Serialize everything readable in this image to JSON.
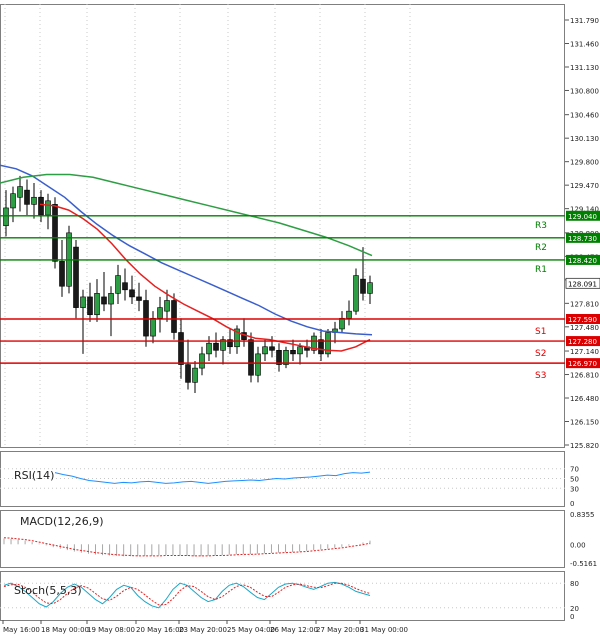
{
  "chart_data": {
    "type": "candlestick",
    "instrument_hint": "JPY cross, H4-style bars",
    "price_axis": {
      "ticks": [
        "131.790",
        "131.460",
        "131.130",
        "130.800",
        "130.460",
        "130.130",
        "129.800",
        "129.470",
        "129.140",
        "128.800",
        "128.470",
        "128.140",
        "127.810",
        "127.480",
        "127.140",
        "126.810",
        "126.480",
        "126.150",
        "125.820"
      ],
      "ylim": [
        125.82,
        131.79
      ]
    },
    "time_labels": [
      "May 16:00",
      "18 May 00:00",
      "19 May 08:00",
      "20 May 16:00",
      "23 May 20:00",
      "25 May 04:00",
      "26 May 12:00",
      "27 May 20:00",
      "31 May 00:00"
    ],
    "levels": [
      {
        "name": "R3",
        "value": 129.04,
        "label": "129.040",
        "color": "#008000"
      },
      {
        "name": "R2",
        "value": 128.73,
        "label": "128.730",
        "color": "#008000"
      },
      {
        "name": "R1",
        "value": 128.42,
        "label": "128.420",
        "color": "#008000"
      },
      {
        "name": "S1",
        "value": 127.59,
        "label": "127.590",
        "color": "#dd0000"
      },
      {
        "name": "S2",
        "value": 127.28,
        "label": "127.280",
        "color": "#dd0000"
      },
      {
        "name": "S3",
        "value": 126.97,
        "label": "126.970",
        "color": "#dd0000"
      }
    ],
    "last_price": {
      "value": 128.091,
      "label": "128.091"
    },
    "moving_averages": [
      {
        "name": "MA fast",
        "color": "#e62020",
        "values": [
          129.2,
          129.18,
          129.12,
          129.0,
          128.85,
          128.65,
          128.42,
          128.22,
          128.05,
          127.92,
          127.8,
          127.7,
          127.6,
          127.48,
          127.38,
          127.32,
          127.3,
          127.26,
          127.22,
          127.18,
          127.15,
          127.14,
          127.2,
          127.3
        ]
      },
      {
        "name": "MA mid",
        "color": "#3a5fcd",
        "values": [
          129.75,
          129.7,
          129.6,
          129.45,
          129.3,
          129.1,
          128.92,
          128.76,
          128.62,
          128.5,
          128.38,
          128.28,
          128.18,
          128.08,
          127.98,
          127.88,
          127.78,
          127.66,
          127.56,
          127.48,
          127.42,
          127.4,
          127.38,
          127.37
        ]
      },
      {
        "name": "MA slow",
        "color": "#2e9e44",
        "values": [
          129.5,
          129.58,
          129.62,
          129.62,
          129.58,
          129.5,
          129.42,
          129.34,
          129.26,
          129.18,
          129.1,
          129.02,
          128.94,
          128.84,
          128.74,
          128.62,
          128.48
        ]
      }
    ],
    "candles": [
      {
        "o": 128.9,
        "h": 129.4,
        "l": 128.75,
        "c": 129.15
      },
      {
        "o": 129.15,
        "h": 129.45,
        "l": 128.95,
        "c": 129.35
      },
      {
        "o": 129.3,
        "h": 129.6,
        "l": 129.1,
        "c": 129.45
      },
      {
        "o": 129.4,
        "h": 129.55,
        "l": 129.05,
        "c": 129.2
      },
      {
        "o": 129.2,
        "h": 129.5,
        "l": 129.0,
        "c": 129.3
      },
      {
        "o": 129.3,
        "h": 129.4,
        "l": 128.95,
        "c": 129.05
      },
      {
        "o": 129.05,
        "h": 129.35,
        "l": 128.85,
        "c": 129.25
      },
      {
        "o": 129.2,
        "h": 129.3,
        "l": 128.3,
        "c": 128.4
      },
      {
        "o": 128.4,
        "h": 128.7,
        "l": 127.9,
        "c": 128.05
      },
      {
        "o": 128.05,
        "h": 128.9,
        "l": 127.95,
        "c": 128.8
      },
      {
        "o": 128.6,
        "h": 128.7,
        "l": 127.6,
        "c": 127.75
      },
      {
        "o": 127.75,
        "h": 128.0,
        "l": 127.1,
        "c": 127.9
      },
      {
        "o": 127.9,
        "h": 128.1,
        "l": 127.55,
        "c": 127.65
      },
      {
        "o": 127.65,
        "h": 128.15,
        "l": 127.55,
        "c": 127.95
      },
      {
        "o": 127.9,
        "h": 128.25,
        "l": 127.7,
        "c": 127.8
      },
      {
        "o": 127.8,
        "h": 128.05,
        "l": 127.35,
        "c": 127.95
      },
      {
        "o": 127.95,
        "h": 128.35,
        "l": 127.8,
        "c": 128.2
      },
      {
        "o": 128.1,
        "h": 128.3,
        "l": 127.85,
        "c": 128.0
      },
      {
        "o": 128.0,
        "h": 128.2,
        "l": 127.8,
        "c": 127.9
      },
      {
        "o": 127.9,
        "h": 128.1,
        "l": 127.7,
        "c": 127.85
      },
      {
        "o": 127.85,
        "h": 128.0,
        "l": 127.2,
        "c": 127.35
      },
      {
        "o": 127.35,
        "h": 127.7,
        "l": 127.25,
        "c": 127.6
      },
      {
        "o": 127.6,
        "h": 127.9,
        "l": 127.4,
        "c": 127.75
      },
      {
        "o": 127.7,
        "h": 128.0,
        "l": 127.55,
        "c": 127.85
      },
      {
        "o": 127.85,
        "h": 127.95,
        "l": 127.3,
        "c": 127.4
      },
      {
        "o": 127.4,
        "h": 127.6,
        "l": 126.75,
        "c": 126.95
      },
      {
        "o": 126.95,
        "h": 127.3,
        "l": 126.6,
        "c": 126.7
      },
      {
        "o": 126.7,
        "h": 127.0,
        "l": 126.55,
        "c": 126.9
      },
      {
        "o": 126.9,
        "h": 127.2,
        "l": 126.8,
        "c": 127.1
      },
      {
        "o": 127.1,
        "h": 127.35,
        "l": 127.0,
        "c": 127.25
      },
      {
        "o": 127.25,
        "h": 127.4,
        "l": 127.05,
        "c": 127.15
      },
      {
        "o": 127.15,
        "h": 127.35,
        "l": 126.95,
        "c": 127.3
      },
      {
        "o": 127.3,
        "h": 127.45,
        "l": 127.1,
        "c": 127.2
      },
      {
        "o": 127.2,
        "h": 127.5,
        "l": 127.1,
        "c": 127.45
      },
      {
        "o": 127.4,
        "h": 127.6,
        "l": 127.2,
        "c": 127.3
      },
      {
        "o": 127.3,
        "h": 127.4,
        "l": 126.7,
        "c": 126.8
      },
      {
        "o": 126.8,
        "h": 127.2,
        "l": 126.7,
        "c": 127.1
      },
      {
        "o": 127.1,
        "h": 127.3,
        "l": 127.0,
        "c": 127.2
      },
      {
        "o": 127.2,
        "h": 127.35,
        "l": 127.05,
        "c": 127.15
      },
      {
        "o": 127.15,
        "h": 127.25,
        "l": 126.85,
        "c": 126.95
      },
      {
        "o": 126.95,
        "h": 127.2,
        "l": 126.9,
        "c": 127.15
      },
      {
        "o": 127.15,
        "h": 127.3,
        "l": 127.0,
        "c": 127.1
      },
      {
        "o": 127.1,
        "h": 127.25,
        "l": 126.95,
        "c": 127.2
      },
      {
        "o": 127.2,
        "h": 127.3,
        "l": 127.05,
        "c": 127.15
      },
      {
        "o": 127.15,
        "h": 127.4,
        "l": 127.1,
        "c": 127.35
      },
      {
        "o": 127.3,
        "h": 127.45,
        "l": 127.0,
        "c": 127.1
      },
      {
        "o": 127.1,
        "h": 127.45,
        "l": 127.05,
        "c": 127.4
      },
      {
        "o": 127.4,
        "h": 127.55,
        "l": 127.25,
        "c": 127.45
      },
      {
        "o": 127.45,
        "h": 127.7,
        "l": 127.4,
        "c": 127.6
      },
      {
        "o": 127.6,
        "h": 127.85,
        "l": 127.5,
        "c": 127.7
      },
      {
        "o": 127.7,
        "h": 128.3,
        "l": 127.65,
        "c": 128.2
      },
      {
        "o": 128.15,
        "h": 128.6,
        "l": 127.85,
        "c": 127.95
      },
      {
        "o": 127.95,
        "h": 128.2,
        "l": 127.8,
        "c": 128.1
      }
    ],
    "rsi": {
      "label": "RSI(14)",
      "ticks": [
        "70",
        "50",
        "30",
        "0"
      ],
      "ylim": [
        0,
        100
      ],
      "values": [
        62,
        58,
        55,
        50,
        46,
        44,
        42,
        40,
        42,
        41,
        43,
        44,
        42,
        40,
        41,
        43,
        44,
        42,
        40,
        42,
        44,
        45,
        46,
        47,
        46,
        48,
        50,
        49,
        51,
        52,
        53,
        55,
        57,
        56,
        60,
        62,
        61,
        63
      ]
    },
    "macd": {
      "label": "MACD(12,26,9)",
      "ticks": [
        "0.8355",
        "0.00",
        "-0.5161"
      ],
      "ylim": [
        -0.5161,
        0.8355
      ],
      "hist": [
        0.16,
        0.15,
        0.13,
        0.1,
        0.06,
        0.02,
        -0.03,
        -0.08,
        -0.12,
        -0.16,
        -0.2,
        -0.23,
        -0.26,
        -0.28,
        -0.3,
        -0.31,
        -0.32,
        -0.33,
        -0.33,
        -0.33,
        -0.32,
        -0.32,
        -0.31,
        -0.3,
        -0.3,
        -0.31,
        -0.32,
        -0.33,
        -0.33,
        -0.32,
        -0.31,
        -0.3,
        -0.29,
        -0.28,
        -0.27,
        -0.27,
        -0.26,
        -0.25,
        -0.24,
        -0.23,
        -0.22,
        -0.21,
        -0.2,
        -0.18,
        -0.16,
        -0.14,
        -0.12,
        -0.1,
        -0.07,
        -0.04,
        0.0,
        0.05,
        0.1
      ],
      "signal": [
        0.18,
        0.17,
        0.15,
        0.13,
        0.1,
        0.06,
        0.02,
        -0.02,
        -0.06,
        -0.1,
        -0.14,
        -0.17,
        -0.2,
        -0.23,
        -0.25,
        -0.27,
        -0.29,
        -0.3,
        -0.31,
        -0.32,
        -0.32,
        -0.32,
        -0.32,
        -0.31,
        -0.31,
        -0.31,
        -0.31,
        -0.32,
        -0.32,
        -0.32,
        -0.31,
        -0.31,
        -0.3,
        -0.29,
        -0.28,
        -0.28,
        -0.27,
        -0.26,
        -0.25,
        -0.24,
        -0.23,
        -0.22,
        -0.21,
        -0.2,
        -0.18,
        -0.16,
        -0.14,
        -0.12,
        -0.1,
        -0.07,
        -0.04,
        -0.01,
        0.03
      ]
    },
    "stoch": {
      "label": "Stoch(5,5,3)",
      "ticks": [
        "80",
        "20",
        "0"
      ],
      "ylim": [
        0,
        100
      ],
      "main": [
        75,
        80,
        72,
        60,
        45,
        30,
        22,
        35,
        55,
        70,
        78,
        70,
        55,
        40,
        30,
        45,
        65,
        75,
        70,
        50,
        35,
        25,
        20,
        40,
        65,
        80,
        75,
        60,
        45,
        35,
        40,
        60,
        75,
        80,
        72,
        58,
        45,
        40,
        55,
        70,
        78,
        80,
        76,
        70,
        65,
        72,
        80,
        82,
        78,
        70,
        60,
        55,
        50
      ],
      "signal": [
        72,
        76,
        77,
        70,
        58,
        44,
        32,
        30,
        40,
        55,
        68,
        74,
        68,
        55,
        42,
        38,
        48,
        62,
        70,
        65,
        52,
        38,
        27,
        28,
        42,
        62,
        74,
        72,
        60,
        47,
        40,
        47,
        60,
        72,
        76,
        70,
        58,
        48,
        47,
        58,
        70,
        76,
        78,
        74,
        70,
        69,
        74,
        80,
        80,
        75,
        67,
        60,
        55
      ]
    }
  }
}
